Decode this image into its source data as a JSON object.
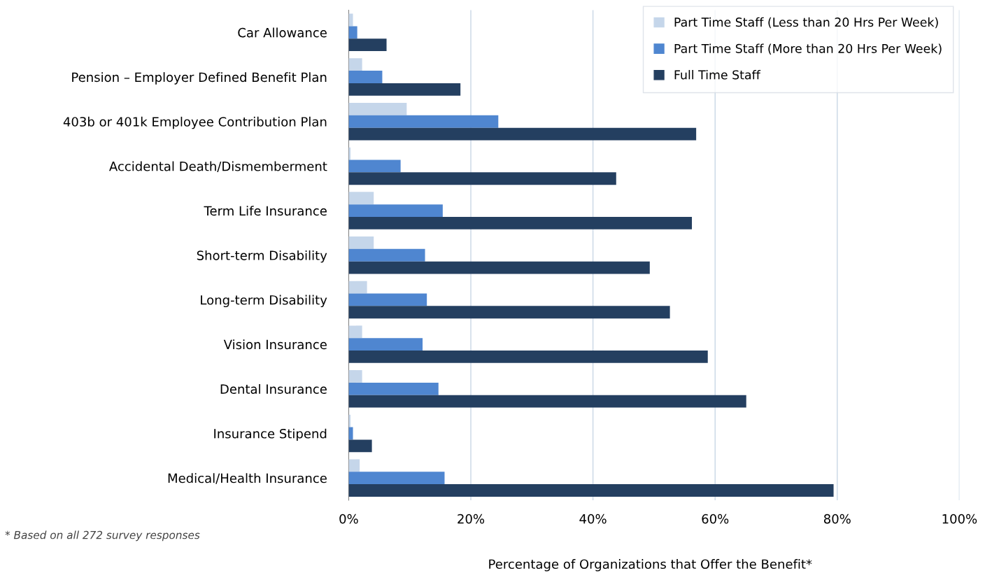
{
  "chart_data": {
    "type": "bar",
    "orientation": "horizontal",
    "xlabel": "Percentage of Organizations that Offer the Benefit*",
    "categories": [
      "Car Allowance",
      "Pension – Employer Defined Benefit Plan",
      "403b or 401k Employee Contribution Plan",
      "Accidental Death/Dismemberment",
      "Term Life Insurance",
      "Short-term Disability",
      "Long-term Disability",
      "Vision Insurance",
      "Dental Insurance",
      "Insurance Stipend",
      "Medical/Health Insurance"
    ],
    "series": [
      {
        "name": "Part Time Staff (Less than 20 Hrs Per Week)",
        "color": "#c5d6ea",
        "values": [
          0.7,
          2.2,
          9.5,
          0.3,
          4.1,
          4.1,
          3.0,
          2.2,
          2.2,
          0.3,
          1.8
        ]
      },
      {
        "name": "Part Time Staff (More than 20 Hrs Per Week)",
        "color": "#4f86d0",
        "values": [
          1.4,
          5.5,
          24.5,
          8.5,
          15.4,
          12.5,
          12.8,
          12.1,
          14.7,
          0.7,
          15.7
        ]
      },
      {
        "name": "Full Time Staff",
        "color": "#243f60",
        "values": [
          6.2,
          18.3,
          56.9,
          43.8,
          56.2,
          49.3,
          52.6,
          58.8,
          65.1,
          3.8,
          79.4
        ]
      }
    ],
    "xlim": [
      0,
      100
    ],
    "xticks": [
      {
        "value": 0,
        "label": "0%"
      },
      {
        "value": 20,
        "label": "20%"
      },
      {
        "value": 40,
        "label": "40%"
      },
      {
        "value": 60,
        "label": "60%"
      },
      {
        "value": 80,
        "label": "80%"
      },
      {
        "value": 100,
        "label": "100%"
      }
    ],
    "grid": "x",
    "legend": "top right",
    "annotations": [
      "* Based on all 272 survey responses"
    ]
  }
}
